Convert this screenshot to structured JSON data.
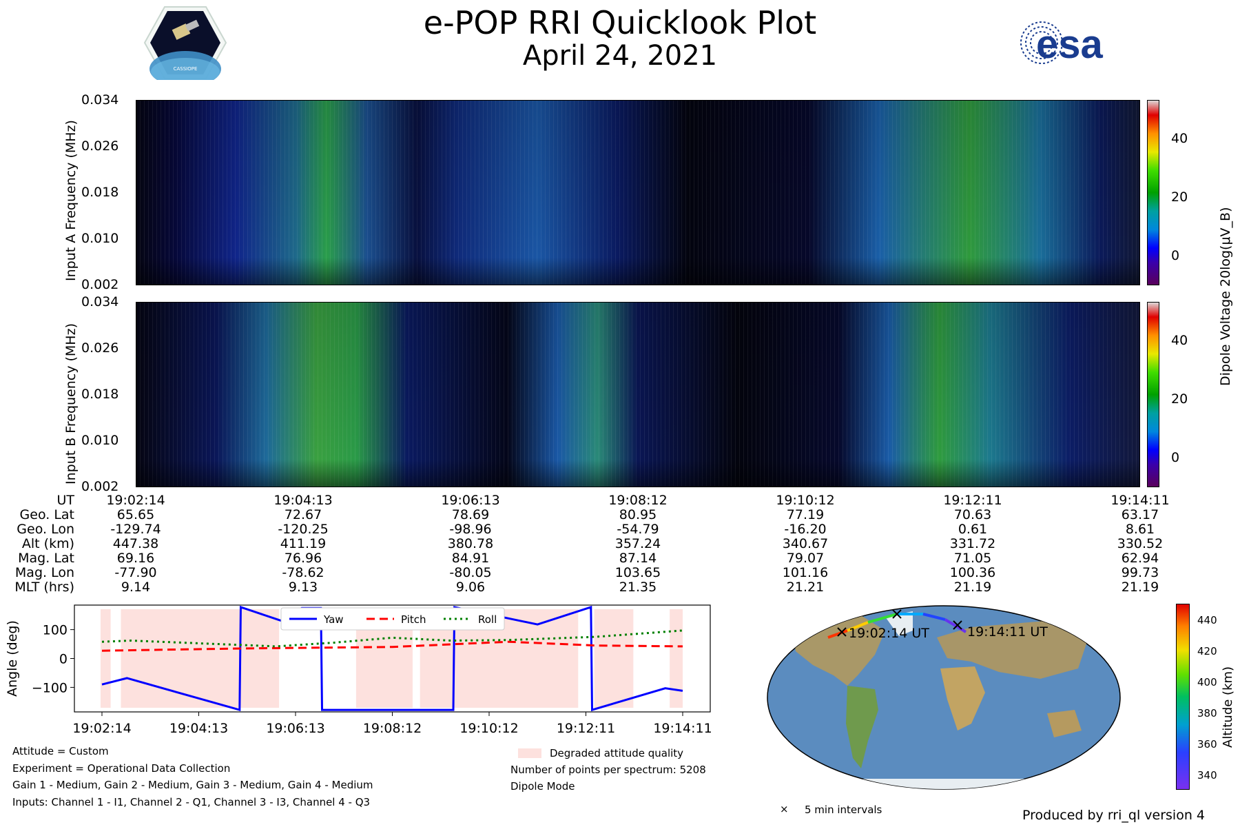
{
  "header": {
    "title": "e-POP RRI Quicklook Plot",
    "date": "April 24, 2021",
    "left_logo_text": "CASSIOPE",
    "right_logo_text": "esa"
  },
  "spectrograms": {
    "panels": [
      {
        "ylabel": "Input A Frequency (MHz)"
      },
      {
        "ylabel": "Input B Frequency (MHz)"
      }
    ],
    "yticks": [
      "0.034",
      "0.026",
      "0.018",
      "0.010",
      "0.002"
    ],
    "colorbar": {
      "label": "Dipole Voltage 20log(μV_B)",
      "ticks": [
        "40",
        "20",
        "0"
      ]
    }
  },
  "ephemeris": {
    "row_labels": [
      "UT",
      "Geo. Lat",
      "Geo. Lon",
      "Alt (km)",
      "Mag. Lat",
      "Mag. Lon",
      "MLT (hrs)"
    ],
    "columns": [
      [
        "19:02:14",
        "65.65",
        "-129.74",
        "447.38",
        "69.16",
        "-77.90",
        "9.14"
      ],
      [
        "19:04:13",
        "72.67",
        "-120.25",
        "411.19",
        "76.96",
        "-78.62",
        "9.13"
      ],
      [
        "19:06:13",
        "78.69",
        "-98.96",
        "380.78",
        "84.91",
        "-80.05",
        "9.06"
      ],
      [
        "19:08:12",
        "80.95",
        "-54.79",
        "357.24",
        "87.14",
        "103.65",
        "21.35"
      ],
      [
        "19:10:12",
        "77.19",
        "-16.20",
        "340.67",
        "79.07",
        "101.16",
        "21.21"
      ],
      [
        "19:12:11",
        "70.63",
        "0.61",
        "331.72",
        "71.05",
        "100.36",
        "21.19"
      ],
      [
        "19:14:11",
        "63.17",
        "8.61",
        "330.52",
        "62.94",
        "99.73",
        "21.19"
      ]
    ]
  },
  "chart_data": [
    {
      "type": "line",
      "ylabel": "Angle (deg)",
      "ylim": [
        -185,
        185
      ],
      "yticks": [
        "100",
        "0",
        "−100"
      ],
      "xticks": [
        "19:02:14",
        "19:04:13",
        "19:06:13",
        "19:08:12",
        "19:10:12",
        "19:12:11",
        "19:14:11"
      ],
      "series": [
        {
          "name": "Yaw",
          "color": "#0000ff",
          "x": [
            0,
            0.043,
            0.237,
            0.239,
            0.31,
            0.344,
            0.377,
            0.379,
            0.605,
            0.607,
            0.75,
            0.842,
            0.844,
            0.97,
            1.0
          ],
          "values": [
            -90,
            -68,
            -178,
            178,
            130,
            175,
            175,
            -178,
            -178,
            178,
            118,
            178,
            -178,
            -103,
            -112
          ]
        },
        {
          "name": "Pitch",
          "color": "#ff0000",
          "x": [
            0,
            0.25,
            0.5,
            0.7,
            0.85,
            1.0
          ],
          "values": [
            27,
            35,
            40,
            58,
            45,
            42
          ]
        },
        {
          "name": "Roll",
          "color": "#008000",
          "x": [
            0,
            0.05,
            0.2,
            0.3,
            0.4,
            0.5,
            0.6,
            0.7,
            0.85,
            1.0
          ],
          "values": [
            58,
            62,
            50,
            42,
            55,
            72,
            62,
            64,
            75,
            97
          ]
        }
      ],
      "degraded_regions": [
        [
          0.0,
          0.015
        ],
        [
          0.035,
          0.305
        ],
        [
          0.44,
          0.535
        ],
        [
          0.55,
          0.82
        ],
        [
          0.85,
          0.915
        ],
        [
          0.98,
          1.0
        ]
      ],
      "legend_degraded": "Degraded attitude quality"
    },
    {
      "type": "scatter",
      "title": "map",
      "labels": [
        "19:02:14 UT",
        "19:14:11 UT"
      ],
      "colorbar_label": "Altitude (km)",
      "colorbar_ticks": [
        "440",
        "420",
        "400",
        "380",
        "360",
        "340"
      ],
      "marker_legend": "5 min intervals"
    }
  ],
  "notes_left": [
    "Attitude = Custom",
    "Experiment = Operational Data Collection",
    "Gain 1 - Medium, Gain 2 - Medium, Gain 3 - Medium, Gain 4 - Medium",
    "Inputs: Channel 1 - I1, Channel 2 - Q1, Channel 3 - I3, Channel 4 - Q3"
  ],
  "notes_right": [
    "Number of points per spectrum: 5208",
    "Dipole Mode"
  ],
  "footer": "Produced by rri_ql version 4"
}
